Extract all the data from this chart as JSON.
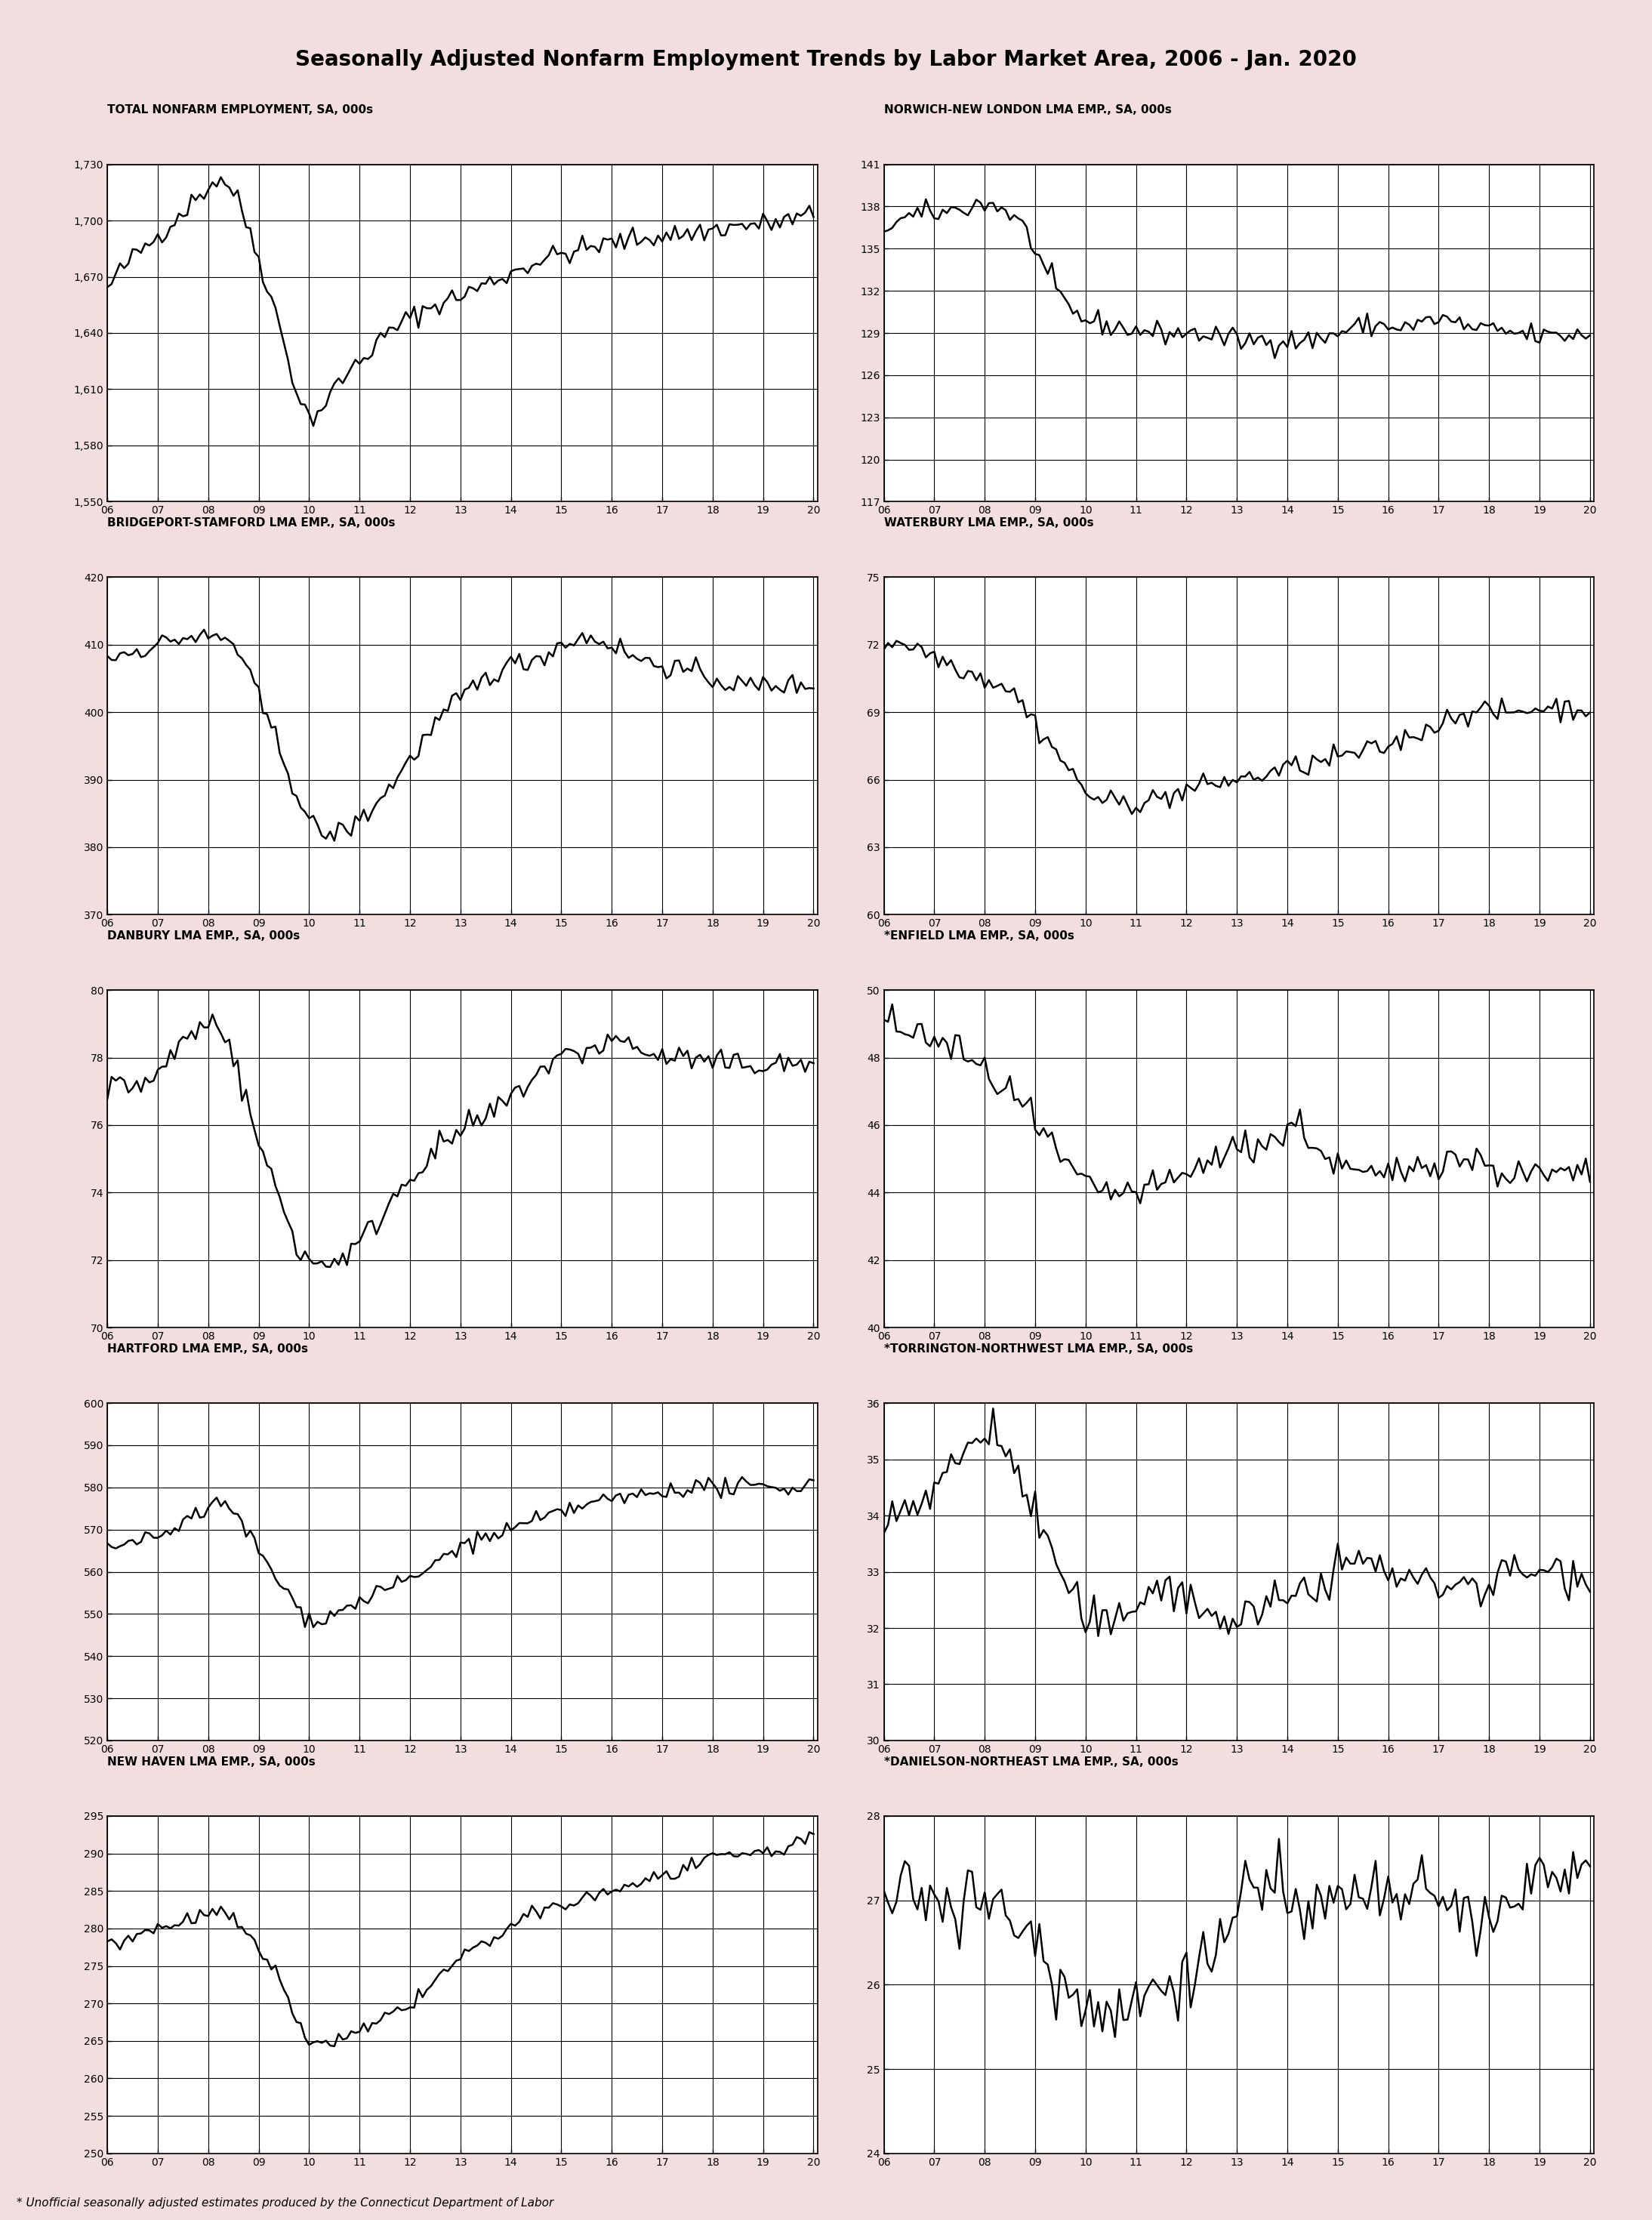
{
  "title": "Seasonally Adjusted Nonfarm Employment Trends by Labor Market Area, 2006 - Jan. 2020",
  "background_color": "#f2dede",
  "chart_bg": "#ffffff",
  "footnote": "* Unofficial seasonally adjusted estimates produced by the Connecticut Department of Labor",
  "panels": [
    {
      "title": "TOTAL NONFARM EMPLOYMENT, SA, 000s",
      "ylim": [
        1550,
        1730
      ],
      "yticks": [
        1550,
        1580,
        1610,
        1640,
        1670,
        1700,
        1730
      ],
      "noise": 3.0,
      "keypoints": [
        [
          2006.0,
          1663
        ],
        [
          2006.5,
          1680
        ],
        [
          2007.0,
          1692
        ],
        [
          2007.5,
          1705
        ],
        [
          2008.0,
          1718
        ],
        [
          2008.25,
          1722
        ],
        [
          2008.5,
          1715
        ],
        [
          2009.0,
          1680
        ],
        [
          2009.5,
          1635
        ],
        [
          2009.75,
          1610
        ],
        [
          2010.0,
          1596
        ],
        [
          2010.25,
          1600
        ],
        [
          2010.5,
          1610
        ],
        [
          2011.0,
          1625
        ],
        [
          2011.5,
          1638
        ],
        [
          2012.0,
          1648
        ],
        [
          2012.5,
          1655
        ],
        [
          2013.0,
          1660
        ],
        [
          2013.5,
          1666
        ],
        [
          2014.0,
          1672
        ],
        [
          2014.5,
          1678
        ],
        [
          2015.0,
          1682
        ],
        [
          2015.5,
          1685
        ],
        [
          2016.0,
          1688
        ],
        [
          2016.5,
          1690
        ],
        [
          2017.0,
          1692
        ],
        [
          2017.5,
          1693
        ],
        [
          2018.0,
          1695
        ],
        [
          2018.5,
          1697
        ],
        [
          2019.0,
          1698
        ],
        [
          2019.5,
          1700
        ],
        [
          2020.08,
          1703
        ]
      ]
    },
    {
      "title": "NORWICH-NEW LONDON LMA EMP., SA, 000s",
      "ylim": [
        117,
        141
      ],
      "yticks": [
        117,
        120,
        123,
        126,
        129,
        132,
        135,
        138,
        141
      ],
      "noise": 0.4,
      "keypoints": [
        [
          2006.0,
          136.5
        ],
        [
          2006.5,
          137.2
        ],
        [
          2007.0,
          137.5
        ],
        [
          2007.5,
          137.8
        ],
        [
          2008.0,
          138.2
        ],
        [
          2008.25,
          138.0
        ],
        [
          2008.5,
          137.5
        ],
        [
          2009.0,
          135.0
        ],
        [
          2009.25,
          133.0
        ],
        [
          2009.5,
          131.5
        ],
        [
          2009.75,
          130.5
        ],
        [
          2010.0,
          130.0
        ],
        [
          2010.5,
          129.5
        ],
        [
          2011.0,
          129.2
        ],
        [
          2011.5,
          129.0
        ],
        [
          2012.0,
          129.0
        ],
        [
          2012.5,
          128.8
        ],
        [
          2013.0,
          128.5
        ],
        [
          2013.5,
          128.5
        ],
        [
          2014.0,
          128.5
        ],
        [
          2014.5,
          128.5
        ],
        [
          2015.0,
          129.0
        ],
        [
          2015.5,
          129.5
        ],
        [
          2016.0,
          129.5
        ],
        [
          2016.5,
          129.5
        ],
        [
          2017.0,
          130.0
        ],
        [
          2017.5,
          129.5
        ],
        [
          2018.0,
          129.2
        ],
        [
          2018.5,
          129.0
        ],
        [
          2019.0,
          128.8
        ],
        [
          2019.5,
          128.8
        ],
        [
          2020.08,
          129.0
        ]
      ]
    },
    {
      "title": "BRIDGEPORT-STAMFORD LMA EMP., SA, 000s",
      "ylim": [
        370,
        420
      ],
      "yticks": [
        370,
        380,
        390,
        400,
        410,
        420
      ],
      "noise": 0.8,
      "keypoints": [
        [
          2006.0,
          408
        ],
        [
          2006.5,
          409
        ],
        [
          2007.0,
          410
        ],
        [
          2007.5,
          411
        ],
        [
          2008.0,
          411
        ],
        [
          2008.25,
          411
        ],
        [
          2008.5,
          410
        ],
        [
          2009.0,
          402
        ],
        [
          2009.5,
          393
        ],
        [
          2009.75,
          388
        ],
        [
          2010.0,
          384
        ],
        [
          2010.5,
          382
        ],
        [
          2011.0,
          384
        ],
        [
          2011.5,
          388
        ],
        [
          2012.0,
          393
        ],
        [
          2012.5,
          398
        ],
        [
          2013.0,
          402
        ],
        [
          2013.5,
          405
        ],
        [
          2014.0,
          407
        ],
        [
          2014.5,
          408
        ],
        [
          2015.0,
          410
        ],
        [
          2015.5,
          411
        ],
        [
          2016.0,
          410
        ],
        [
          2016.5,
          408
        ],
        [
          2017.0,
          407
        ],
        [
          2017.5,
          406
        ],
        [
          2018.0,
          405
        ],
        [
          2018.5,
          404
        ],
        [
          2019.0,
          404
        ],
        [
          2019.5,
          404
        ],
        [
          2020.08,
          404
        ]
      ]
    },
    {
      "title": "WATERBURY LMA EMP., SA, 000s",
      "ylim": [
        60,
        75
      ],
      "yticks": [
        60,
        63,
        66,
        69,
        72,
        75
      ],
      "noise": 0.25,
      "keypoints": [
        [
          2006.0,
          72
        ],
        [
          2006.5,
          72
        ],
        [
          2007.0,
          71.5
        ],
        [
          2007.5,
          71.0
        ],
        [
          2008.0,
          70.5
        ],
        [
          2008.5,
          70.0
        ],
        [
          2009.0,
          68.5
        ],
        [
          2009.5,
          67.0
        ],
        [
          2010.0,
          65.5
        ],
        [
          2010.5,
          65.0
        ],
        [
          2011.0,
          65.0
        ],
        [
          2011.5,
          65.2
        ],
        [
          2012.0,
          65.5
        ],
        [
          2012.5,
          65.8
        ],
        [
          2013.0,
          66.0
        ],
        [
          2013.5,
          66.2
        ],
        [
          2014.0,
          66.5
        ],
        [
          2014.5,
          66.7
        ],
        [
          2015.0,
          67.0
        ],
        [
          2015.5,
          67.2
        ],
        [
          2016.0,
          67.5
        ],
        [
          2016.5,
          68.0
        ],
        [
          2017.0,
          68.5
        ],
        [
          2017.5,
          69.0
        ],
        [
          2018.0,
          69.0
        ],
        [
          2018.5,
          69.0
        ],
        [
          2019.0,
          69.2
        ],
        [
          2019.5,
          69.2
        ],
        [
          2020.08,
          69.2
        ]
      ]
    },
    {
      "title": "DANBURY LMA EMP., SA, 000s",
      "ylim": [
        70,
        80
      ],
      "yticks": [
        70,
        72,
        74,
        76,
        78,
        80
      ],
      "noise": 0.2,
      "keypoints": [
        [
          2006.0,
          77.0
        ],
        [
          2006.5,
          77.2
        ],
        [
          2007.0,
          77.5
        ],
        [
          2007.5,
          78.5
        ],
        [
          2008.0,
          79.0
        ],
        [
          2008.25,
          79.0
        ],
        [
          2008.5,
          78.0
        ],
        [
          2009.0,
          75.5
        ],
        [
          2009.5,
          73.5
        ],
        [
          2009.75,
          72.5
        ],
        [
          2010.0,
          72.0
        ],
        [
          2010.5,
          72.0
        ],
        [
          2011.0,
          72.5
        ],
        [
          2011.5,
          73.5
        ],
        [
          2012.0,
          74.5
        ],
        [
          2012.5,
          75.2
        ],
        [
          2013.0,
          75.8
        ],
        [
          2013.5,
          76.2
        ],
        [
          2014.0,
          76.8
        ],
        [
          2014.5,
          77.5
        ],
        [
          2015.0,
          78.0
        ],
        [
          2015.5,
          78.2
        ],
        [
          2016.0,
          78.5
        ],
        [
          2016.5,
          78.3
        ],
        [
          2017.0,
          78.0
        ],
        [
          2017.5,
          78.0
        ],
        [
          2018.0,
          77.8
        ],
        [
          2018.5,
          77.8
        ],
        [
          2019.0,
          77.8
        ],
        [
          2019.5,
          77.8
        ],
        [
          2020.08,
          77.8
        ]
      ]
    },
    {
      "title": "*ENFIELD LMA EMP., SA, 000s",
      "ylim": [
        40,
        50
      ],
      "yticks": [
        40,
        42,
        44,
        46,
        48,
        50
      ],
      "noise": 0.25,
      "keypoints": [
        [
          2006.0,
          49.0
        ],
        [
          2006.5,
          48.8
        ],
        [
          2007.0,
          48.5
        ],
        [
          2007.5,
          48.2
        ],
        [
          2008.0,
          47.5
        ],
        [
          2008.5,
          47.0
        ],
        [
          2009.0,
          46.0
        ],
        [
          2009.5,
          45.0
        ],
        [
          2010.0,
          44.2
        ],
        [
          2010.5,
          44.0
        ],
        [
          2011.0,
          44.0
        ],
        [
          2011.5,
          44.2
        ],
        [
          2012.0,
          44.5
        ],
        [
          2012.5,
          45.0
        ],
        [
          2013.0,
          45.3
        ],
        [
          2013.5,
          45.5
        ],
        [
          2014.0,
          45.8
        ],
        [
          2014.25,
          46.0
        ],
        [
          2014.5,
          45.5
        ],
        [
          2015.0,
          44.8
        ],
        [
          2015.5,
          44.5
        ],
        [
          2016.0,
          44.5
        ],
        [
          2016.5,
          44.8
        ],
        [
          2017.0,
          45.0
        ],
        [
          2017.5,
          45.0
        ],
        [
          2018.0,
          44.8
        ],
        [
          2018.5,
          44.5
        ],
        [
          2019.0,
          44.5
        ],
        [
          2019.5,
          44.5
        ],
        [
          2020.08,
          44.5
        ]
      ]
    },
    {
      "title": "HARTFORD LMA EMP., SA, 000s",
      "ylim": [
        520,
        600
      ],
      "yticks": [
        520,
        530,
        540,
        550,
        560,
        570,
        580,
        590,
        600
      ],
      "noise": 1.0,
      "keypoints": [
        [
          2006.0,
          565
        ],
        [
          2006.5,
          567
        ],
        [
          2007.0,
          568
        ],
        [
          2007.5,
          572
        ],
        [
          2008.0,
          575
        ],
        [
          2008.25,
          576
        ],
        [
          2008.5,
          574
        ],
        [
          2009.0,
          565
        ],
        [
          2009.5,
          556
        ],
        [
          2009.75,
          552
        ],
        [
          2010.0,
          549
        ],
        [
          2010.5,
          550
        ],
        [
          2011.0,
          553
        ],
        [
          2011.5,
          556
        ],
        [
          2012.0,
          558
        ],
        [
          2012.5,
          562
        ],
        [
          2013.0,
          566
        ],
        [
          2013.5,
          568
        ],
        [
          2014.0,
          570
        ],
        [
          2014.5,
          572
        ],
        [
          2015.0,
          574
        ],
        [
          2015.5,
          576
        ],
        [
          2016.0,
          577
        ],
        [
          2016.5,
          578
        ],
        [
          2017.0,
          579
        ],
        [
          2017.5,
          580
        ],
        [
          2018.0,
          580
        ],
        [
          2018.5,
          580
        ],
        [
          2019.0,
          580
        ],
        [
          2019.5,
          580
        ],
        [
          2020.08,
          581
        ]
      ]
    },
    {
      "title": "*TORRINGTON-NORTHWEST LMA EMP., SA, 000s",
      "ylim": [
        30,
        36
      ],
      "yticks": [
        30,
        31,
        32,
        33,
        34,
        35,
        36
      ],
      "noise": 0.2,
      "keypoints": [
        [
          2006.0,
          34.0
        ],
        [
          2006.5,
          34.2
        ],
        [
          2007.0,
          34.5
        ],
        [
          2007.5,
          35.0
        ],
        [
          2008.0,
          35.5
        ],
        [
          2008.25,
          35.5
        ],
        [
          2008.5,
          35.0
        ],
        [
          2009.0,
          34.0
        ],
        [
          2009.5,
          33.0
        ],
        [
          2009.75,
          32.5
        ],
        [
          2010.0,
          32.2
        ],
        [
          2010.5,
          32.0
        ],
        [
          2011.0,
          32.5
        ],
        [
          2011.5,
          32.8
        ],
        [
          2012.0,
          32.5
        ],
        [
          2012.5,
          32.2
        ],
        [
          2013.0,
          32.2
        ],
        [
          2013.5,
          32.3
        ],
        [
          2014.0,
          32.5
        ],
        [
          2014.5,
          32.8
        ],
        [
          2015.0,
          33.0
        ],
        [
          2015.5,
          33.2
        ],
        [
          2016.0,
          33.0
        ],
        [
          2016.5,
          32.8
        ],
        [
          2017.0,
          32.8
        ],
        [
          2017.5,
          32.8
        ],
        [
          2018.0,
          32.8
        ],
        [
          2018.5,
          33.0
        ],
        [
          2019.0,
          33.0
        ],
        [
          2019.5,
          33.0
        ],
        [
          2020.08,
          33.0
        ]
      ]
    },
    {
      "title": "NEW HAVEN LMA EMP., SA, 000s",
      "ylim": [
        250,
        295
      ],
      "yticks": [
        250,
        255,
        260,
        265,
        270,
        275,
        280,
        285,
        290,
        295
      ],
      "noise": 0.5,
      "keypoints": [
        [
          2006.0,
          278
        ],
        [
          2006.5,
          279
        ],
        [
          2007.0,
          280
        ],
        [
          2007.5,
          281
        ],
        [
          2008.0,
          282
        ],
        [
          2008.25,
          282
        ],
        [
          2008.5,
          281
        ],
        [
          2009.0,
          277
        ],
        [
          2009.5,
          272
        ],
        [
          2009.75,
          268
        ],
        [
          2010.0,
          265
        ],
        [
          2010.5,
          265
        ],
        [
          2011.0,
          266
        ],
        [
          2011.5,
          268
        ],
        [
          2012.0,
          270
        ],
        [
          2012.5,
          273
        ],
        [
          2013.0,
          276
        ],
        [
          2013.5,
          278
        ],
        [
          2014.0,
          280
        ],
        [
          2014.5,
          282
        ],
        [
          2015.0,
          283
        ],
        [
          2015.5,
          284
        ],
        [
          2016.0,
          285
        ],
        [
          2016.5,
          286
        ],
        [
          2017.0,
          287
        ],
        [
          2017.5,
          288
        ],
        [
          2018.0,
          289
        ],
        [
          2018.5,
          290
        ],
        [
          2019.0,
          290
        ],
        [
          2019.5,
          291
        ],
        [
          2020.08,
          292
        ]
      ]
    },
    {
      "title": "*DANIELSON-NORTHEAST LMA EMP., SA, 000s",
      "ylim": [
        24,
        28
      ],
      "yticks": [
        24,
        25,
        26,
        27,
        28
      ],
      "noise": 0.2,
      "keypoints": [
        [
          2006.0,
          27.0
        ],
        [
          2006.5,
          27.1
        ],
        [
          2007.0,
          27.1
        ],
        [
          2007.5,
          27.0
        ],
        [
          2008.0,
          27.0
        ],
        [
          2008.5,
          26.8
        ],
        [
          2009.0,
          26.5
        ],
        [
          2009.5,
          26.0
        ],
        [
          2010.0,
          25.8
        ],
        [
          2010.5,
          25.7
        ],
        [
          2011.0,
          25.8
        ],
        [
          2011.5,
          26.0
        ],
        [
          2012.0,
          26.2
        ],
        [
          2012.5,
          26.3
        ],
        [
          2013.0,
          27.0
        ],
        [
          2013.5,
          27.2
        ],
        [
          2014.0,
          27.0
        ],
        [
          2014.5,
          26.8
        ],
        [
          2015.0,
          27.0
        ],
        [
          2015.5,
          27.1
        ],
        [
          2016.0,
          27.0
        ],
        [
          2016.5,
          27.0
        ],
        [
          2017.0,
          27.0
        ],
        [
          2017.5,
          26.8
        ],
        [
          2018.0,
          26.8
        ],
        [
          2018.5,
          27.0
        ],
        [
          2019.0,
          27.2
        ],
        [
          2019.5,
          27.3
        ],
        [
          2020.08,
          27.5
        ]
      ]
    }
  ]
}
